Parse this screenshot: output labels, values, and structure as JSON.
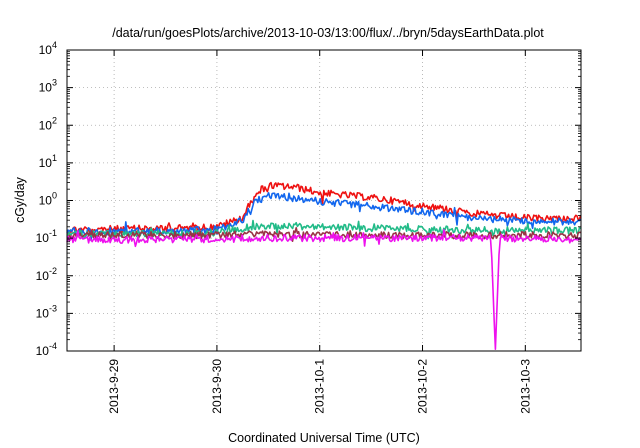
{
  "chart_data": {
    "type": "line",
    "title": "/data/run/goesPlots/archive/2013-10-03/13:00/flux/../bryn/5daysEarthData.plot",
    "xlabel": "Coordinated Universal Time (UTC)",
    "ylabel": "cGy/day",
    "yscale": "log",
    "ylim": [
      0.0001,
      10000
    ],
    "yticks": [
      {
        "value": 0.0001,
        "base": "10",
        "exp": "-4"
      },
      {
        "value": 0.001,
        "base": "10",
        "exp": "-3"
      },
      {
        "value": 0.01,
        "base": "10",
        "exp": "-2"
      },
      {
        "value": 0.1,
        "base": "10",
        "exp": "-1"
      },
      {
        "value": 1,
        "base": "10",
        "exp": "0"
      },
      {
        "value": 10,
        "base": "10",
        "exp": "1"
      },
      {
        "value": 100,
        "base": "10",
        "exp": "2"
      },
      {
        "value": 1000,
        "base": "10",
        "exp": "3"
      },
      {
        "value": 10000,
        "base": "10",
        "exp": "4"
      }
    ],
    "xlim": [
      "2013-09-28T13:00",
      "2013-10-03T13:00"
    ],
    "xticks": [
      {
        "value": "2013-09-29",
        "label": "2013-9-29"
      },
      {
        "value": "2013-09-30",
        "label": "2013-9-30"
      },
      {
        "value": "2013-10-01",
        "label": "2013-10-1"
      },
      {
        "value": "2013-10-02",
        "label": "2013-10-2"
      },
      {
        "value": "2013-10-03",
        "label": "2013-10-3"
      }
    ],
    "grid": "dotted",
    "legend": "none",
    "series": [
      {
        "color": "#ee1111",
        "x": [
          "2013-09-28T13:00",
          "2013-09-29T12:00",
          "2013-09-30T00:00",
          "2013-09-30T06:00",
          "2013-09-30T09:00",
          "2013-09-30T12:00",
          "2013-09-30T18:00",
          "2013-10-01T00:00",
          "2013-10-01T12:00",
          "2013-10-02T00:00",
          "2013-10-02T12:00",
          "2013-10-03T00:00",
          "2013-10-03T13:00"
        ],
        "y": [
          0.17,
          0.18,
          0.2,
          0.35,
          1.6,
          2.5,
          2.3,
          1.6,
          1.2,
          0.75,
          0.45,
          0.34,
          0.33
        ]
      },
      {
        "color": "#1166ee",
        "x": [
          "2013-09-28T13:00",
          "2013-09-29T12:00",
          "2013-09-30T00:00",
          "2013-09-30T06:00",
          "2013-09-30T09:00",
          "2013-09-30T12:00",
          "2013-09-30T18:00",
          "2013-10-01T00:00",
          "2013-10-01T12:00",
          "2013-10-02T00:00",
          "2013-10-02T12:00",
          "2013-10-03T00:00",
          "2013-10-03T13:00"
        ],
        "y": [
          0.15,
          0.16,
          0.17,
          0.3,
          0.95,
          1.3,
          1.2,
          0.95,
          0.7,
          0.5,
          0.35,
          0.28,
          0.27
        ]
      },
      {
        "color": "#22bb88",
        "x": [
          "2013-09-28T13:00",
          "2013-09-29T12:00",
          "2013-09-30T00:00",
          "2013-09-30T09:00",
          "2013-09-30T12:00",
          "2013-10-01T00:00",
          "2013-10-02T00:00",
          "2013-10-03T00:00",
          "2013-10-03T13:00"
        ],
        "y": [
          0.13,
          0.13,
          0.14,
          0.21,
          0.22,
          0.2,
          0.17,
          0.16,
          0.16
        ]
      },
      {
        "color": "#993344",
        "x": [
          "2013-09-28T13:00",
          "2013-09-30T00:00",
          "2013-09-30T12:00",
          "2013-10-01T12:00",
          "2013-10-03T13:00"
        ],
        "y": [
          0.12,
          0.12,
          0.13,
          0.12,
          0.12
        ]
      },
      {
        "color": "#ee11ee",
        "x": [
          "2013-09-28T13:00",
          "2013-09-29T12:00",
          "2013-09-30T12:00",
          "2013-10-02T12:00",
          "2013-10-02T16:00",
          "2013-10-02T17:00",
          "2013-10-02T18:00",
          "2013-10-03T13:00"
        ],
        "y": [
          0.09,
          0.09,
          0.1,
          0.1,
          0.1,
          0.0001,
          0.1,
          0.09
        ]
      }
    ]
  }
}
